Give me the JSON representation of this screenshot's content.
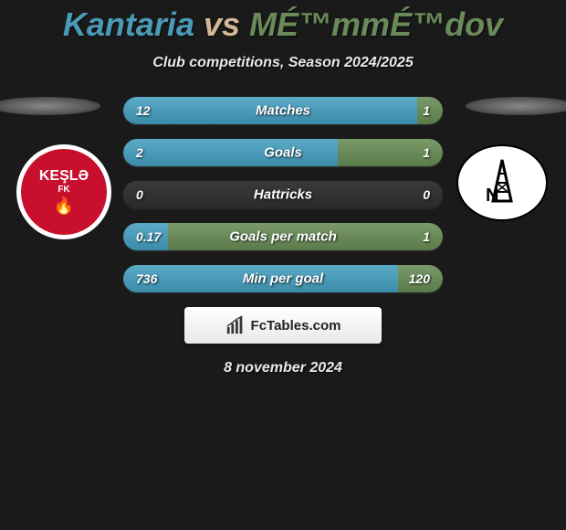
{
  "title": {
    "player1": "Kantaria",
    "vs": "vs",
    "player2": "MÉ™mmÉ™dov",
    "player1_color": "#4a9bb8",
    "vs_color": "#d4b896",
    "player2_color": "#6a8a5a"
  },
  "subtitle": "Club competitions, Season 2024/2025",
  "clubs": {
    "left": {
      "name": "KEŞLƏ",
      "sub": "FK",
      "badge_bg": "#c8102e",
      "badge_ring": "#ffffff"
    },
    "right": {
      "name": "N",
      "badge_bg": "#ffffff",
      "badge_border": "#000000"
    }
  },
  "stats": [
    {
      "label": "Matches",
      "left_value": "12",
      "right_value": "1",
      "left_pct": 92,
      "right_pct": 8,
      "left_color": "linear-gradient(to bottom, #5aaac8, #3a8aa8)",
      "right_color": "linear-gradient(to bottom, #7a9a6a, #5a7a4a)"
    },
    {
      "label": "Goals",
      "left_value": "2",
      "right_value": "1",
      "left_pct": 67,
      "right_pct": 33,
      "left_color": "linear-gradient(to bottom, #5aaac8, #3a8aa8)",
      "right_color": "linear-gradient(to bottom, #7a9a6a, #5a7a4a)"
    },
    {
      "label": "Hattricks",
      "left_value": "0",
      "right_value": "0",
      "left_pct": 0,
      "right_pct": 0,
      "left_color": "linear-gradient(to bottom, #5aaac8, #3a8aa8)",
      "right_color": "linear-gradient(to bottom, #7a9a6a, #5a7a4a)"
    },
    {
      "label": "Goals per match",
      "left_value": "0.17",
      "right_value": "1",
      "left_pct": 14,
      "right_pct": 86,
      "left_color": "linear-gradient(to bottom, #5aaac8, #3a8aa8)",
      "right_color": "linear-gradient(to bottom, #7a9a6a, #5a7a4a)"
    },
    {
      "label": "Min per goal",
      "left_value": "736",
      "right_value": "120",
      "left_pct": 86,
      "right_pct": 14,
      "left_color": "linear-gradient(to bottom, #5aaac8, #3a8aa8)",
      "right_color": "linear-gradient(to bottom, #7a9a6a, #5a7a4a)"
    }
  ],
  "brand": "FcTables.com",
  "date": "8 november 2024",
  "colors": {
    "page_bg": "#1a1a1a",
    "stat_bg": "#2f2f2f",
    "text": "#e8e8e8"
  }
}
